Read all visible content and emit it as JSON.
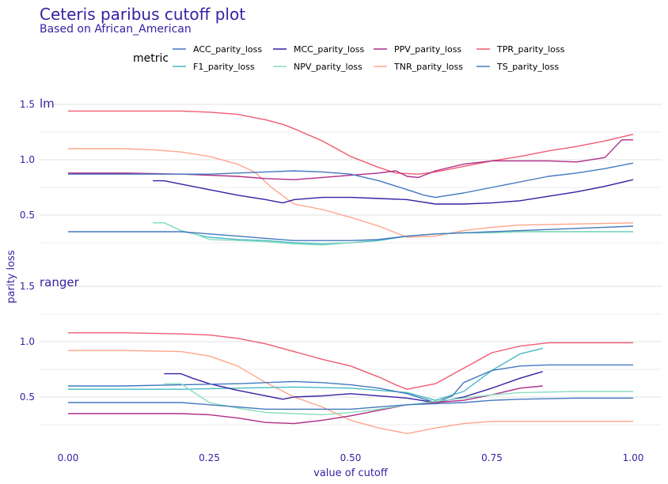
{
  "chart_data": {
    "type": "line",
    "title": "Ceteris paribus cutoff plot",
    "subtitle": "Based on African_American",
    "xlabel": "value of cutoff",
    "ylabel": "parity loss",
    "legend_title": "metric",
    "legend_position": "top",
    "grid": true,
    "xlim": [
      0,
      1
    ],
    "x_ticks": [
      "0.00",
      "0.25",
      "0.50",
      "0.75",
      "1.00"
    ],
    "y_ticks": [
      "0.5",
      "1.0",
      "1.5"
    ],
    "legend": [
      {
        "name": "ACC_parity_loss",
        "color": "#4378bf"
      },
      {
        "name": "F1_parity_loss",
        "color": "#46bac2"
      },
      {
        "name": "MCC_parity_loss",
        "color": "#371ea3"
      },
      {
        "name": "NPV_parity_loss",
        "color": "#8bdcbe"
      },
      {
        "name": "PPV_parity_loss",
        "color": "#ae2c87"
      },
      {
        "name": "TNR_parity_loss",
        "color": "#ffa58c"
      },
      {
        "name": "TPR_parity_loss",
        "color": "#f05a71"
      },
      {
        "name": "TS_parity_loss",
        "color": "#4378bf"
      }
    ],
    "panels": [
      {
        "label": "lm",
        "ylim": [
          0.0,
          1.6
        ],
        "series": [
          {
            "name": "TPR_parity_loss",
            "color": "#f05a71",
            "x": [
              0.0,
              0.1,
              0.2,
              0.25,
              0.3,
              0.35,
              0.38,
              0.4,
              0.45,
              0.5,
              0.55,
              0.58,
              0.62,
              0.65,
              0.7,
              0.75,
              0.8,
              0.85,
              0.9,
              0.95,
              1.0
            ],
            "y": [
              1.44,
              1.44,
              1.44,
              1.43,
              1.41,
              1.36,
              1.32,
              1.28,
              1.17,
              1.03,
              0.93,
              0.88,
              0.87,
              0.89,
              0.94,
              0.99,
              1.03,
              1.08,
              1.12,
              1.17,
              1.23
            ]
          },
          {
            "name": "TNR_parity_loss",
            "color": "#ffa58c",
            "x": [
              0.0,
              0.1,
              0.15,
              0.2,
              0.25,
              0.3,
              0.33,
              0.36,
              0.4,
              0.45,
              0.5,
              0.55,
              0.6,
              0.65,
              0.7,
              0.75,
              0.8,
              0.9,
              1.0
            ],
            "y": [
              1.1,
              1.1,
              1.09,
              1.07,
              1.03,
              0.96,
              0.89,
              0.75,
              0.6,
              0.55,
              0.48,
              0.4,
              0.3,
              0.31,
              0.36,
              0.39,
              0.41,
              0.42,
              0.43
            ]
          },
          {
            "name": "PPV_parity_loss",
            "color": "#ae2c87",
            "x": [
              0.0,
              0.1,
              0.2,
              0.25,
              0.3,
              0.35,
              0.4,
              0.45,
              0.5,
              0.55,
              0.58,
              0.6,
              0.62,
              0.65,
              0.7,
              0.75,
              0.8,
              0.85,
              0.9,
              0.95,
              0.98,
              1.0
            ],
            "y": [
              0.88,
              0.88,
              0.87,
              0.86,
              0.85,
              0.83,
              0.82,
              0.84,
              0.86,
              0.88,
              0.9,
              0.85,
              0.84,
              0.9,
              0.96,
              0.99,
              0.99,
              0.99,
              0.98,
              1.02,
              1.18,
              1.18
            ]
          },
          {
            "name": "ACC_parity_loss",
            "color": "#4378bf",
            "x": [
              0.0,
              0.1,
              0.2,
              0.25,
              0.3,
              0.35,
              0.4,
              0.45,
              0.5,
              0.55,
              0.6,
              0.63,
              0.65,
              0.7,
              0.75,
              0.8,
              0.85,
              0.9,
              0.95,
              1.0
            ],
            "y": [
              0.87,
              0.87,
              0.87,
              0.87,
              0.88,
              0.89,
              0.9,
              0.89,
              0.87,
              0.81,
              0.73,
              0.68,
              0.66,
              0.7,
              0.75,
              0.8,
              0.85,
              0.88,
              0.92,
              0.97
            ]
          },
          {
            "name": "MCC_parity_loss",
            "color": "#371ea3",
            "x": [
              0.15,
              0.17,
              0.2,
              0.25,
              0.3,
              0.35,
              0.38,
              0.4,
              0.45,
              0.5,
              0.55,
              0.6,
              0.65,
              0.7,
              0.75,
              0.8,
              0.85,
              0.9,
              0.95,
              1.0
            ],
            "y": [
              0.81,
              0.81,
              0.78,
              0.73,
              0.68,
              0.64,
              0.61,
              0.64,
              0.66,
              0.66,
              0.65,
              0.64,
              0.6,
              0.6,
              0.61,
              0.63,
              0.67,
              0.71,
              0.76,
              0.82
            ]
          },
          {
            "name": "F1_parity_loss",
            "color": "#46bac2",
            "x": [
              0.15,
              0.17,
              0.2,
              0.23,
              0.25,
              0.3,
              0.35,
              0.4,
              0.45,
              0.5,
              0.55,
              0.6,
              0.65,
              0.7,
              0.75,
              0.8,
              0.85,
              0.9,
              0.95,
              1.0
            ],
            "y": [
              0.43,
              0.43,
              0.36,
              0.32,
              0.3,
              0.28,
              0.27,
              0.25,
              0.24,
              0.25,
              0.27,
              0.31,
              0.33,
              0.34,
              0.34,
              0.35,
              0.35,
              0.35,
              0.35,
              0.35
            ]
          },
          {
            "name": "NPV_parity_loss",
            "color": "#8bdcbe",
            "x": [
              0.15,
              0.17,
              0.2,
              0.23,
              0.25,
              0.3,
              0.35,
              0.4,
              0.45,
              0.5,
              0.55,
              0.6,
              0.65,
              0.7,
              0.75,
              0.8,
              0.85,
              0.9,
              0.95,
              1.0
            ],
            "y": [
              0.43,
              0.43,
              0.36,
              0.32,
              0.28,
              0.27,
              0.26,
              0.24,
              0.23,
              0.25,
              0.28,
              0.31,
              0.33,
              0.34,
              0.34,
              0.35,
              0.35,
              0.35,
              0.35,
              0.35
            ]
          },
          {
            "name": "TS_parity_loss",
            "color": "#4378bf",
            "x": [
              0.0,
              0.1,
              0.2,
              0.25,
              0.3,
              0.35,
              0.4,
              0.45,
              0.5,
              0.55,
              0.6,
              0.65,
              0.7,
              0.75,
              0.8,
              0.85,
              0.9,
              0.95,
              1.0
            ],
            "y": [
              0.35,
              0.35,
              0.35,
              0.33,
              0.31,
              0.29,
              0.27,
              0.27,
              0.27,
              0.28,
              0.31,
              0.33,
              0.34,
              0.35,
              0.36,
              0.37,
              0.38,
              0.39,
              0.4
            ]
          }
        ]
      },
      {
        "label": "ranger",
        "ylim": [
          0.0,
          1.6
        ],
        "series": [
          {
            "name": "TPR_parity_loss",
            "color": "#f05a71",
            "x": [
              0.0,
              0.1,
              0.2,
              0.25,
              0.3,
              0.35,
              0.4,
              0.45,
              0.5,
              0.55,
              0.58,
              0.6,
              0.65,
              0.7,
              0.75,
              0.8,
              0.85,
              0.9,
              0.95,
              1.0
            ],
            "y": [
              1.08,
              1.08,
              1.07,
              1.06,
              1.03,
              0.98,
              0.91,
              0.84,
              0.78,
              0.68,
              0.61,
              0.57,
              0.62,
              0.76,
              0.9,
              0.96,
              0.99,
              0.99,
              0.99,
              0.99
            ]
          },
          {
            "name": "TNR_parity_loss",
            "color": "#ffa58c",
            "x": [
              0.0,
              0.1,
              0.2,
              0.25,
              0.3,
              0.35,
              0.4,
              0.45,
              0.5,
              0.55,
              0.6,
              0.62,
              0.65,
              0.7,
              0.75,
              0.8,
              0.9,
              1.0
            ],
            "y": [
              0.92,
              0.92,
              0.91,
              0.87,
              0.78,
              0.63,
              0.5,
              0.41,
              0.29,
              0.22,
              0.17,
              0.19,
              0.22,
              0.26,
              0.28,
              0.28,
              0.28,
              0.28
            ]
          },
          {
            "name": "F1_parity_loss",
            "color": "#46bac2",
            "x": [
              0.0,
              0.1,
              0.2,
              0.3,
              0.4,
              0.5,
              0.6,
              0.65,
              0.7,
              0.75,
              0.8,
              0.84
            ],
            "y": [
              0.57,
              0.57,
              0.57,
              0.58,
              0.59,
              0.58,
              0.54,
              0.47,
              0.55,
              0.74,
              0.89,
              0.94
            ]
          },
          {
            "name": "MCC_parity_loss",
            "color": "#371ea3",
            "x": [
              0.17,
              0.2,
              0.22,
              0.25,
              0.3,
              0.35,
              0.38,
              0.4,
              0.45,
              0.5,
              0.55,
              0.6,
              0.65,
              0.7,
              0.75,
              0.8,
              0.84
            ],
            "y": [
              0.71,
              0.71,
              0.67,
              0.62,
              0.56,
              0.51,
              0.48,
              0.5,
              0.51,
              0.53,
              0.51,
              0.49,
              0.45,
              0.5,
              0.58,
              0.67,
              0.73
            ]
          },
          {
            "name": "ACC_parity_loss",
            "color": "#4378bf",
            "x": [
              0.0,
              0.1,
              0.2,
              0.3,
              0.35,
              0.4,
              0.45,
              0.5,
              0.55,
              0.6,
              0.65,
              0.68,
              0.7,
              0.75,
              0.8,
              0.85,
              0.9,
              0.95,
              1.0
            ],
            "y": [
              0.6,
              0.6,
              0.61,
              0.62,
              0.63,
              0.64,
              0.63,
              0.61,
              0.58,
              0.53,
              0.45,
              0.51,
              0.63,
              0.74,
              0.78,
              0.79,
              0.79,
              0.79,
              0.79
            ]
          },
          {
            "name": "PPV_parity_loss",
            "color": "#ae2c87",
            "x": [
              0.0,
              0.1,
              0.2,
              0.25,
              0.3,
              0.35,
              0.4,
              0.45,
              0.5,
              0.55,
              0.6,
              0.65,
              0.7,
              0.75,
              0.8,
              0.84
            ],
            "y": [
              0.35,
              0.35,
              0.35,
              0.34,
              0.31,
              0.27,
              0.26,
              0.29,
              0.33,
              0.38,
              0.43,
              0.45,
              0.47,
              0.52,
              0.58,
              0.6
            ]
          },
          {
            "name": "NPV_parity_loss",
            "color": "#8bdcbe",
            "x": [
              0.17,
              0.2,
              0.22,
              0.25,
              0.3,
              0.35,
              0.4,
              0.45,
              0.5,
              0.55,
              0.6,
              0.65,
              0.7,
              0.75,
              0.8,
              0.9,
              1.0
            ],
            "y": [
              0.62,
              0.62,
              0.55,
              0.45,
              0.4,
              0.36,
              0.35,
              0.34,
              0.36,
              0.39,
              0.43,
              0.46,
              0.49,
              0.52,
              0.54,
              0.55,
              0.55
            ]
          },
          {
            "name": "TS_parity_loss",
            "color": "#4378bf",
            "x": [
              0.0,
              0.1,
              0.2,
              0.25,
              0.3,
              0.35,
              0.4,
              0.45,
              0.5,
              0.55,
              0.6,
              0.65,
              0.7,
              0.75,
              0.8,
              0.9,
              1.0
            ],
            "y": [
              0.45,
              0.45,
              0.45,
              0.43,
              0.41,
              0.39,
              0.39,
              0.39,
              0.39,
              0.41,
              0.43,
              0.44,
              0.45,
              0.47,
              0.48,
              0.49,
              0.49
            ]
          }
        ]
      }
    ]
  }
}
